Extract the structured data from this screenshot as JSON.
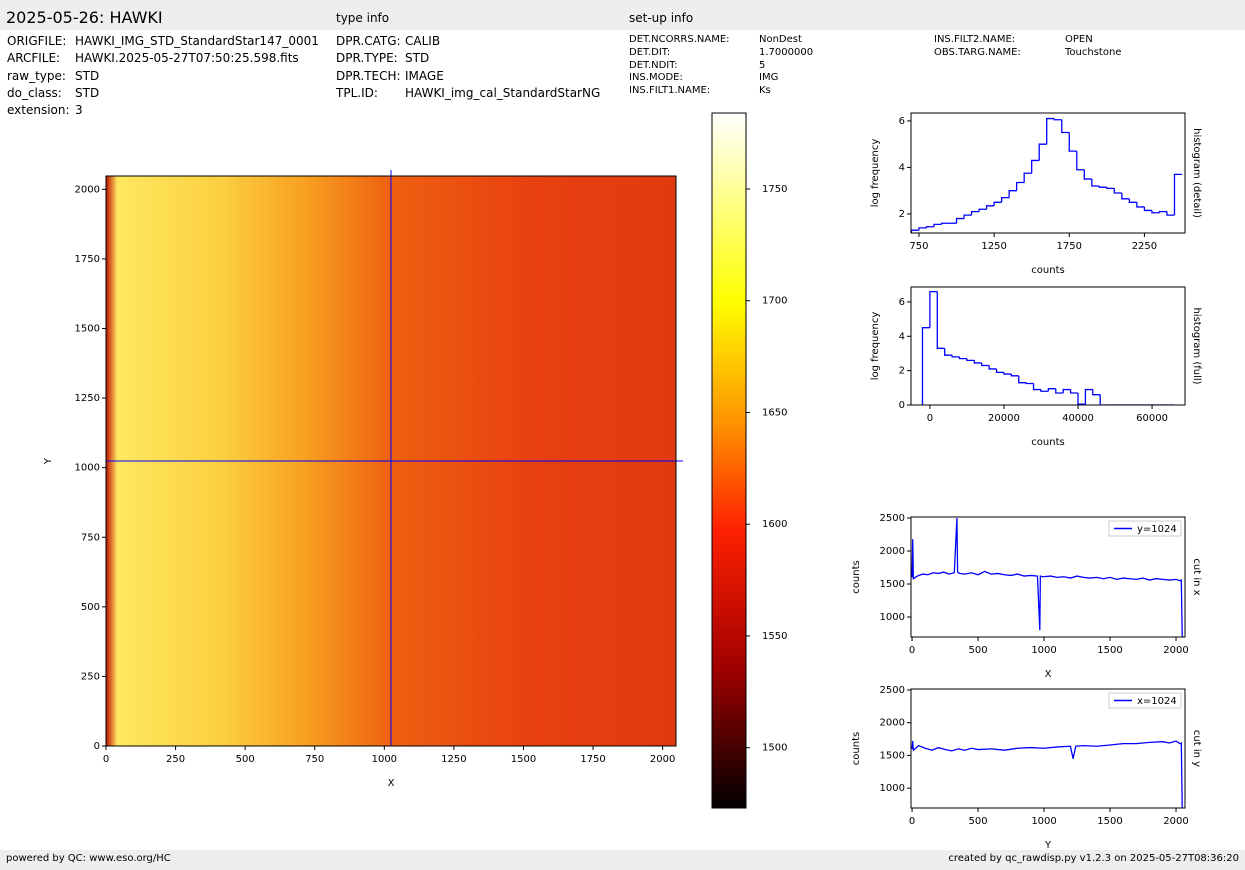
{
  "header": {
    "title": "2025-05-26: HAWKI",
    "type_info_label": "type info",
    "setup_info_label": "set-up info",
    "file_info": [
      {
        "key": "ORIGFILE:",
        "value": "HAWKI_IMG_STD_StandardStar147_0001"
      },
      {
        "key": "ARCFILE:",
        "value": "HAWKI.2025-05-27T07:50:25.598.fits"
      },
      {
        "key": "raw_type:",
        "value": "STD"
      },
      {
        "key": "do_class:",
        "value": "STD"
      },
      {
        "key": "extension:",
        "value": "3"
      }
    ],
    "type_info": [
      {
        "key": "DPR.CATG:",
        "value": "CALIB"
      },
      {
        "key": "DPR.TYPE:",
        "value": "STD"
      },
      {
        "key": "DPR.TECH:",
        "value": "IMAGE"
      },
      {
        "key": "TPL.ID:",
        "value": "HAWKI_img_cal_StandardStarNG"
      }
    ],
    "setup_info": [
      {
        "key": "DET.NCORRS.NAME:",
        "value": "NonDest"
      },
      {
        "key": "DET.DIT:",
        "value": "1.7000000"
      },
      {
        "key": "DET.NDIT:",
        "value": "5"
      },
      {
        "key": "INS.MODE:",
        "value": "IMG"
      },
      {
        "key": "INS.FILT1.NAME:",
        "value": "Ks"
      },
      {
        "key": "INS.FILT2.NAME:",
        "value": "OPEN"
      },
      {
        "key": "OBS.TARG.NAME:",
        "value": "Touchstone"
      }
    ]
  },
  "footer": {
    "left": "powered by QC: www.eso.org/HC",
    "right": "created by qc_rawdisp.py v1.2.3 on 2025-05-27T08:36:20"
  },
  "chart_data": [
    {
      "type": "image",
      "xlabel": "X",
      "ylabel": "Y",
      "xlim": [
        0,
        2048
      ],
      "ylim": [
        0,
        2048
      ],
      "xticks": [
        0,
        250,
        500,
        750,
        1000,
        1250,
        1500,
        1750,
        2000
      ],
      "yticks": [
        0,
        250,
        500,
        750,
        1000,
        1250,
        1500,
        1750,
        2000
      ],
      "crosshair": [
        1024,
        1024
      ],
      "crosshair_color": "#0000ff",
      "colorbar": {
        "lim": [
          1473,
          1784
        ],
        "ticks": [
          1500,
          1550,
          1600,
          1650,
          1700,
          1750
        ]
      }
    },
    {
      "type": "histogram",
      "xlabel": "counts",
      "ylabel": "log frequency",
      "side_label": "histogram (detail)",
      "color": "#0000ff",
      "bins": [
        700,
        750,
        800,
        850,
        900,
        950,
        1000,
        1050,
        1100,
        1150,
        1200,
        1250,
        1300,
        1350,
        1400,
        1450,
        1500,
        1550,
        1600,
        1650,
        1700,
        1750,
        1800,
        1850,
        1900,
        1950,
        2000,
        2050,
        2100,
        2150,
        2200,
        2250,
        2300,
        2350,
        2400,
        2450,
        2500
      ],
      "values": [
        1.3,
        1.4,
        1.45,
        1.55,
        1.6,
        1.6,
        1.8,
        1.95,
        2.1,
        2.2,
        2.35,
        2.5,
        2.7,
        3.0,
        3.35,
        3.75,
        4.3,
        5.0,
        6.1,
        6.05,
        5.5,
        4.7,
        3.9,
        3.5,
        3.2,
        3.15,
        3.1,
        2.9,
        2.65,
        2.5,
        2.3,
        2.15,
        2.05,
        2.1,
        1.95,
        3.7
      ],
      "xlim": [
        697,
        2520
      ],
      "ylim": [
        1.18,
        6.34
      ],
      "xticks": [
        750,
        1250,
        1750,
        2250
      ],
      "yticks": [
        2,
        4,
        6
      ]
    },
    {
      "type": "histogram",
      "xlabel": "counts",
      "ylabel": "log frequency",
      "side_label": "histogram (full)",
      "color": "#0000ff",
      "bins": [
        -2000,
        0,
        2000,
        4000,
        6000,
        8000,
        10000,
        12000,
        14000,
        16000,
        18000,
        20000,
        22000,
        24000,
        26000,
        28000,
        30000,
        32000,
        34000,
        36000,
        38000,
        40000,
        42000,
        44000,
        46000,
        48000,
        50000,
        52000,
        54000,
        56000,
        58000,
        60000,
        62000,
        64000,
        66000
      ],
      "values": [
        4.5,
        6.6,
        3.3,
        2.9,
        2.8,
        2.7,
        2.6,
        2.45,
        2.3,
        2.1,
        1.9,
        1.8,
        1.7,
        1.3,
        1.25,
        0.9,
        0.8,
        0.95,
        0.7,
        0.9,
        0.7,
        0.05,
        0.9,
        0.6,
        0,
        0,
        0,
        0,
        0,
        0,
        0,
        0,
        0,
        0
      ],
      "xlim": [
        -5100,
        68900
      ],
      "ylim": [
        0,
        6.87
      ],
      "xticks": [
        0,
        20000,
        40000,
        60000
      ],
      "yticks": [
        0,
        2,
        4,
        6
      ]
    },
    {
      "type": "line",
      "xlabel": "X",
      "ylabel": "counts",
      "side_label": "cut in x",
      "legend": "upper right",
      "xlim": [
        -8,
        2068
      ],
      "ylim": [
        697,
        2515
      ],
      "xticks": [
        0,
        500,
        1000,
        1500,
        2000
      ],
      "yticks": [
        1000,
        1500,
        2000,
        2500
      ],
      "series": [
        {
          "name": "y=1024",
          "color": "#0000ff",
          "x": [
            0,
            5,
            10,
            40,
            80,
            120,
            160,
            200,
            240,
            280,
            320,
            340,
            345,
            360,
            400,
            450,
            500,
            550,
            600,
            650,
            700,
            750,
            800,
            850,
            900,
            950,
            968,
            972,
            990,
            1050,
            1100,
            1150,
            1200,
            1250,
            1300,
            1350,
            1400,
            1450,
            1500,
            1550,
            1600,
            1650,
            1700,
            1750,
            1800,
            1850,
            1900,
            1950,
            2000,
            2030,
            2040,
            2047
          ],
          "values": [
            1600,
            2180,
            1580,
            1620,
            1650,
            1640,
            1670,
            1660,
            1680,
            1650,
            1670,
            2500,
            1680,
            1660,
            1650,
            1670,
            1640,
            1690,
            1650,
            1660,
            1640,
            1630,
            1650,
            1620,
            1630,
            1620,
            800,
            1620,
            1610,
            1620,
            1600,
            1610,
            1590,
            1620,
            1600,
            1590,
            1600,
            1580,
            1600,
            1570,
            1590,
            1580,
            1570,
            1590,
            1560,
            1580,
            1570,
            1560,
            1570,
            1550,
            1560,
            700
          ]
        }
      ]
    },
    {
      "type": "line",
      "xlabel": "Y",
      "ylabel": "counts",
      "side_label": "cut in y",
      "legend": "upper right",
      "xlim": [
        -8,
        2068
      ],
      "ylim": [
        697,
        2515
      ],
      "xticks": [
        0,
        500,
        1000,
        1500,
        2000
      ],
      "yticks": [
        1000,
        1500,
        2000,
        2500
      ],
      "series": [
        {
          "name": "x=1024",
          "color": "#0000ff",
          "x": [
            0,
            5,
            10,
            50,
            100,
            150,
            200,
            250,
            300,
            350,
            400,
            450,
            500,
            600,
            700,
            800,
            900,
            1000,
            1100,
            1200,
            1220,
            1240,
            1300,
            1400,
            1500,
            1600,
            1700,
            1800,
            1900,
            1950,
            2000,
            2030,
            2040,
            2047
          ],
          "values": [
            1600,
            1720,
            1580,
            1650,
            1610,
            1580,
            1620,
            1590,
            1570,
            1600,
            1580,
            1610,
            1590,
            1600,
            1580,
            1610,
            1620,
            1610,
            1630,
            1640,
            1450,
            1640,
            1650,
            1640,
            1660,
            1680,
            1680,
            1700,
            1710,
            1690,
            1720,
            1680,
            1690,
            700
          ]
        }
      ]
    }
  ]
}
